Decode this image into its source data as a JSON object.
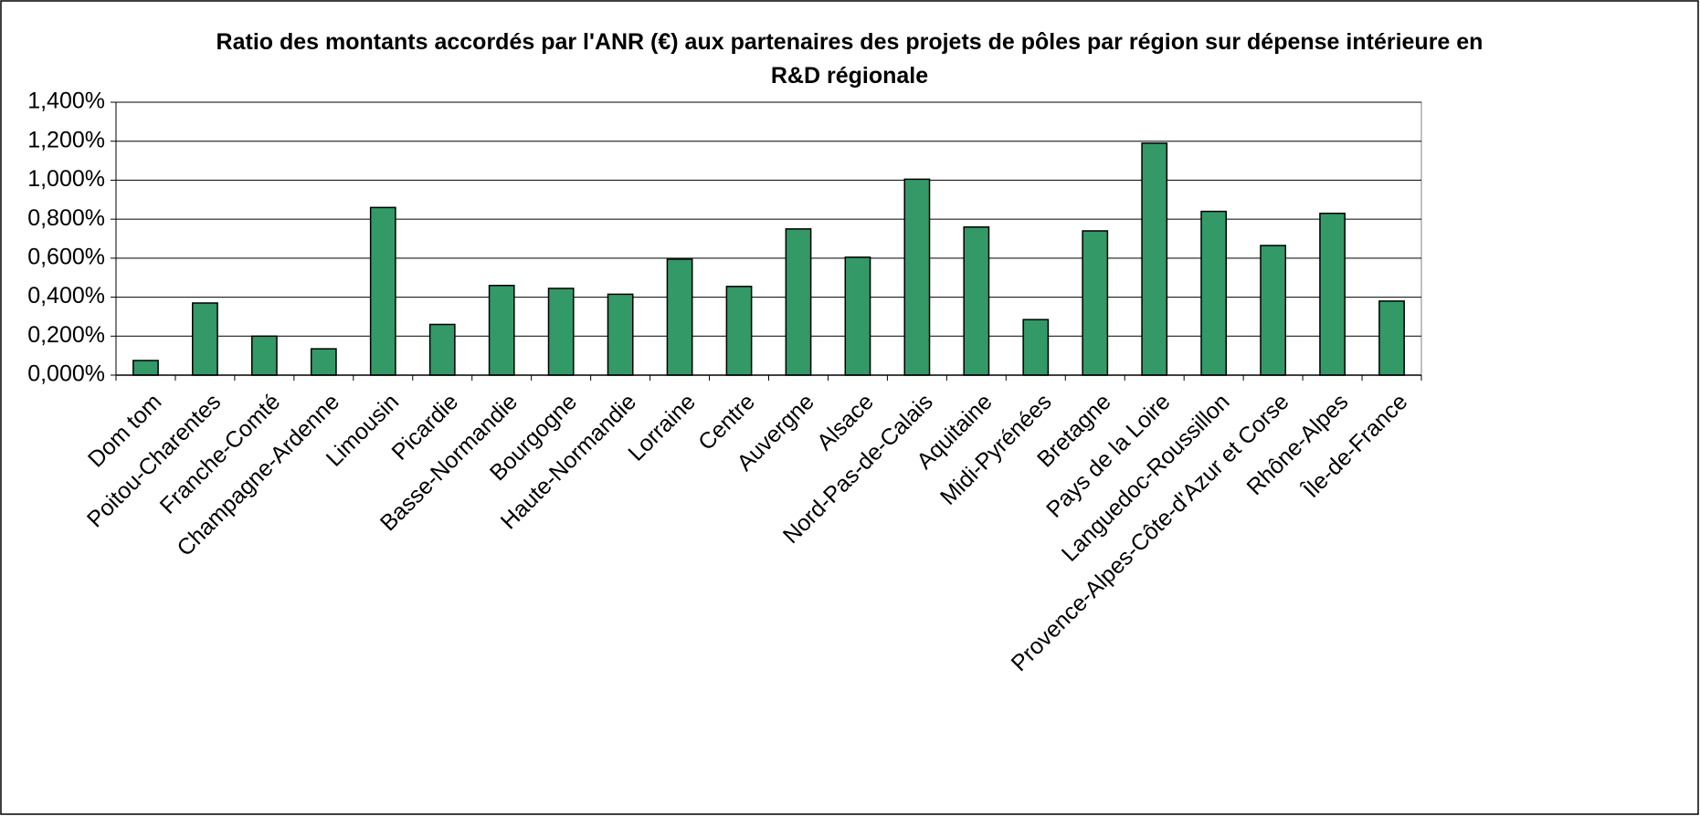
{
  "chart_data": {
    "type": "bar",
    "title": "Ratio des montants accordés par l'ANR (€) aux partenaires des projets de pôles par région sur dépense intérieure en R&D régionale",
    "categories": [
      "Dom tom",
      "Poitou-Charentes",
      "Franche-Comté",
      "Champagne-Ardenne",
      "Limousin",
      "Picardie",
      "Basse-Normandie",
      "Bourgogne",
      "Haute-Normandie",
      "Lorraine",
      "Centre",
      "Auvergne",
      "Alsace",
      "Nord-Pas-de-Calais",
      "Aquitaine",
      "Midi-Pyrénées",
      "Bretagne",
      "Pays de la Loire",
      "Languedoc-Roussillon",
      "Provence-Alpes-Côte-d'Azur et Corse",
      "Rhône-Alpes",
      "Île-de-France"
    ],
    "values": [
      0.075,
      0.37,
      0.2,
      0.135,
      0.86,
      0.26,
      0.46,
      0.445,
      0.415,
      0.595,
      0.455,
      0.75,
      0.605,
      1.005,
      0.76,
      0.285,
      0.74,
      1.19,
      0.84,
      0.665,
      0.83,
      0.38
    ],
    "color": "#339966",
    "ylim": [
      0,
      1.4
    ],
    "yticks": [
      {
        "value": 0,
        "label": "0,000%"
      },
      {
        "value": 0.2,
        "label": "0,200%"
      },
      {
        "value": 0.4,
        "label": "0,400%"
      },
      {
        "value": 0.6,
        "label": "0,600%"
      },
      {
        "value": 0.8,
        "label": "0,800%"
      },
      {
        "value": 1.0,
        "label": "1,000%"
      },
      {
        "value": 1.2,
        "label": "1,200%"
      },
      {
        "value": 1.4,
        "label": "1,400%"
      }
    ],
    "grid": true
  }
}
